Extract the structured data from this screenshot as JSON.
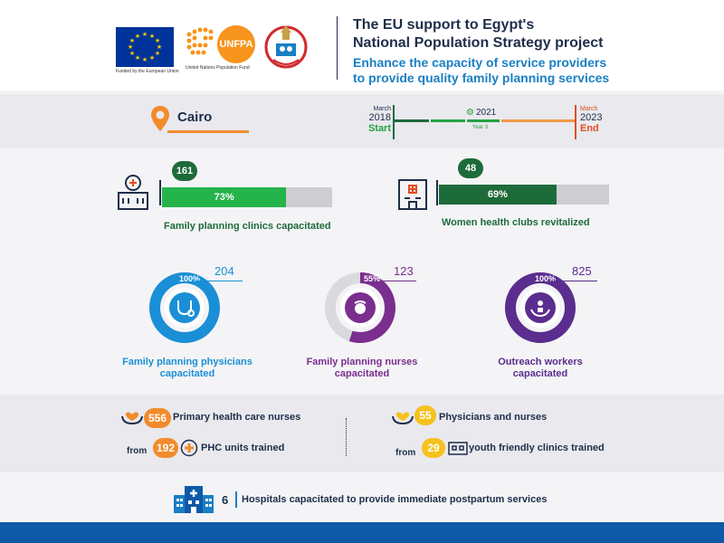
{
  "header": {
    "eu_caption": "Funded by the European Union",
    "un_caption": "United Nations Population Fund",
    "unfpa_logo": "UNFPA",
    "title_line1": "The EU support to Egypt's",
    "title_line2": "National Population Strategy project",
    "subtitle_line1": "Enhance the capacity of service providers",
    "subtitle_line2": "to provide quality family planning services"
  },
  "location": {
    "city": "Cairo",
    "icon": "location-pin-icon"
  },
  "timeline": {
    "start_month": "March",
    "start_year": "2018",
    "start_label": "Start",
    "current_year": "2021",
    "current_label": "Year 3",
    "end_month": "March",
    "end_year": "2023",
    "end_label": "End",
    "colors": {
      "done": "#1e6b3a",
      "current": "#25a244",
      "remaining": "#f28b2b",
      "end": "#e04e1f"
    }
  },
  "stats": {
    "clinics": {
      "count": "161",
      "percent_label": "73%",
      "percent": 73,
      "label": "Family planning clinics capacitated",
      "color": "#25b34b",
      "icon": "clinic-building-icon"
    },
    "clubs": {
      "count": "48",
      "percent_label": "69%",
      "percent": 69,
      "label": "Women health clubs revitalized",
      "color": "#1e6b3a",
      "icon": "health-club-building-icon"
    }
  },
  "rings": [
    {
      "percent_label": "100%",
      "percent": 100,
      "count": "204",
      "label_line1": "Family planning physicians",
      "label_line2": "capacitated",
      "color": "#1a8fd6",
      "icon": "stethoscope-icon"
    },
    {
      "percent_label": "55%",
      "percent": 55,
      "count": "123",
      "label_line1": "Family planning nurses",
      "label_line2": "capacitated",
      "color": "#7a2e8e",
      "icon": "nurse-icon"
    },
    {
      "percent_label": "100%",
      "percent": 100,
      "count": "825",
      "label_line1": "Outreach workers",
      "label_line2": "capacitated",
      "color": "#5b2d8e",
      "icon": "helping-hands-icon"
    }
  ],
  "training": {
    "phc_nurses": {
      "count": "556",
      "text": "Primary health care nurses"
    },
    "phc_units": {
      "from": "from",
      "count": "192",
      "text": "PHC units trained"
    },
    "physicians_nurses": {
      "count": "55",
      "text": "Physicians and nurses"
    },
    "youth_clinics": {
      "from": "from",
      "count": "29",
      "text": "youth friendly clinics trained"
    }
  },
  "hospitals": {
    "count": "6",
    "text": "Hospitals capacitated to provide immediate postpartum services"
  }
}
